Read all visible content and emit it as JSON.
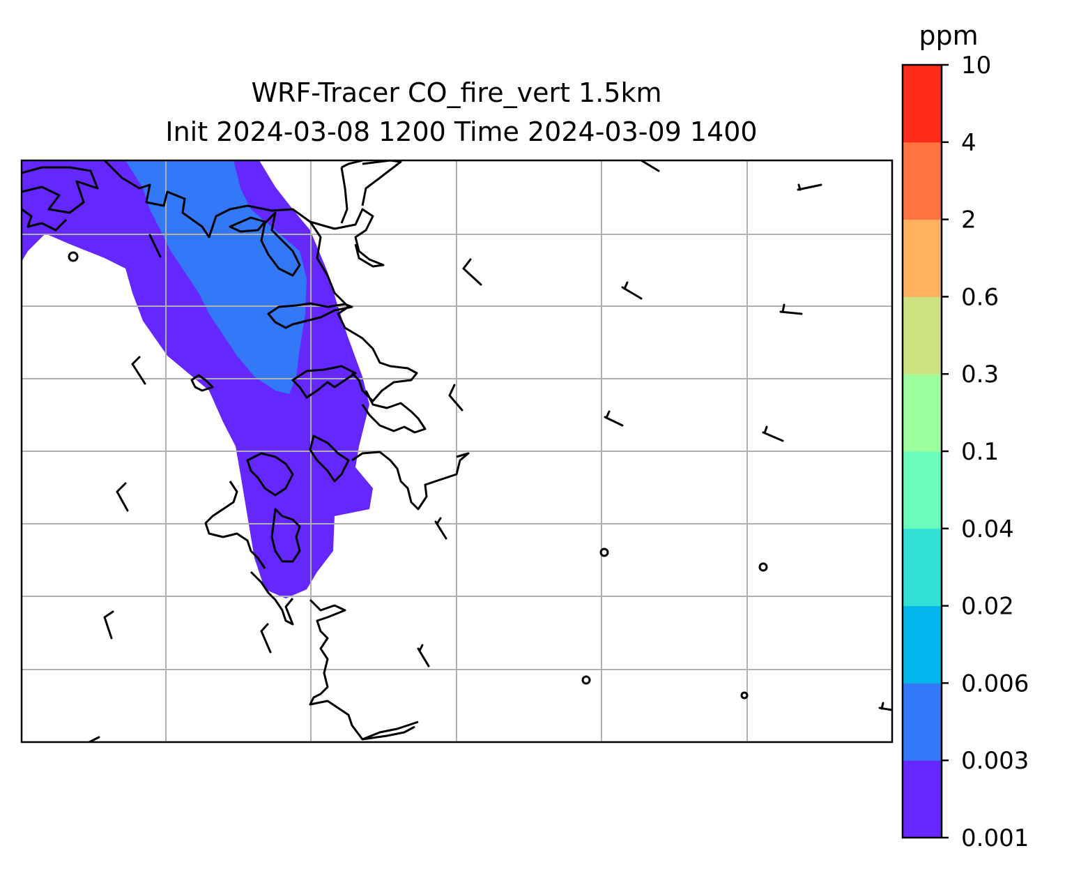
{
  "title": {
    "line1": "WRF-Tracer CO_fire_vert 1.5km",
    "line2": "Init 2024-03-08 1200 Time 2024-03-09 1400"
  },
  "colorbar": {
    "unit": "ppm",
    "levels": [
      "0.001",
      "0.003",
      "0.006",
      "0.02",
      "0.04",
      "0.1",
      "0.3",
      "0.6",
      "2",
      "4",
      "10"
    ],
    "colors": [
      "#6428fe",
      "#3378f6",
      "#02b6ec",
      "#33e0d6",
      "#68fcbd",
      "#9cfe9c",
      "#cde280",
      "#ffb360",
      "#ff7440",
      "#ff2c1c"
    ]
  },
  "map": {
    "gridlines": true,
    "tracer_colors": {
      "low": "#6428fe",
      "mid": "#3378f6"
    },
    "coastline_color": "#000000"
  }
}
